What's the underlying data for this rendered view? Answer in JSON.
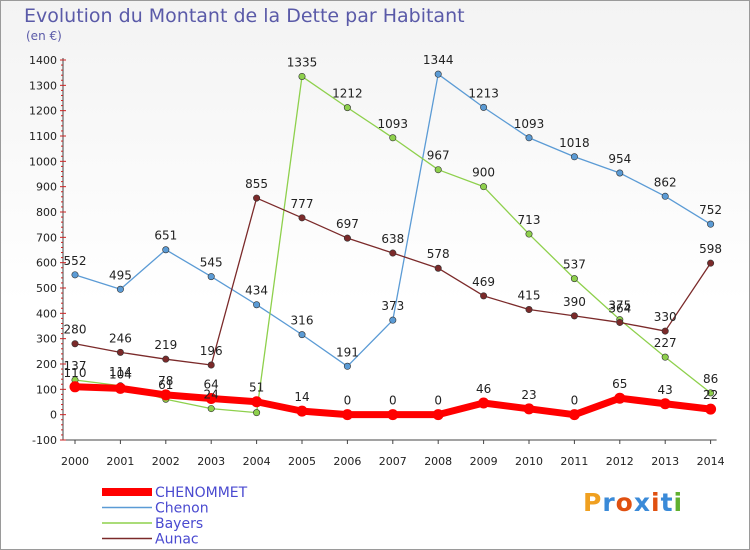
{
  "title": "Evolution du Montant de la Dette par Habitant",
  "subtitle": "(en €)",
  "logo": {
    "text": "Proxiti",
    "colors": [
      "#f0a020",
      "#3a8ad8",
      "#e05010",
      "#3a8ad8",
      "#e05010",
      "#3a8ad8",
      "#60b030"
    ]
  },
  "chart_data": {
    "type": "line",
    "categories": [
      "2000",
      "2001",
      "2002",
      "2003",
      "2004",
      "2005",
      "2006",
      "2007",
      "2008",
      "2009",
      "2010",
      "2011",
      "2012",
      "2013",
      "2014"
    ],
    "ylim": [
      -100,
      1400
    ],
    "yticks": [
      -100,
      0,
      100,
      200,
      300,
      400,
      500,
      600,
      700,
      800,
      900,
      1000,
      1100,
      1200,
      1300,
      1400
    ],
    "grid": false,
    "legend_position": "bottom-left",
    "series": [
      {
        "name": "CHENOMMET",
        "color": "#ff0000",
        "values": [
          110,
          104,
          78,
          64,
          51,
          14,
          0,
          0,
          0,
          46,
          23,
          0,
          65,
          43,
          22
        ],
        "labels": [
          "110",
          "104",
          "78",
          "64",
          "51",
          "14",
          "0",
          "0",
          "0",
          "46",
          "23",
          "0",
          "65",
          "43",
          "22"
        ]
      },
      {
        "name": "Chenon",
        "color": "#5b9bd5",
        "values": [
          552,
          495,
          651,
          545,
          434,
          316,
          191,
          373,
          1344,
          1213,
          1093,
          1018,
          954,
          862,
          752
        ],
        "labels": [
          "552",
          "495",
          "651",
          "545",
          "434",
          "316",
          "191",
          "373",
          "1344",
          "1213",
          "1093",
          "1018",
          "954",
          "862",
          "752"
        ]
      },
      {
        "name": "Bayers",
        "color": "#8ed04c",
        "values": [
          137,
          114,
          61,
          24,
          8,
          1335,
          1212,
          1093,
          967,
          900,
          713,
          537,
          375,
          227,
          86
        ],
        "labels": [
          "137",
          "114",
          "61",
          "24",
          "",
          "1335",
          "1212",
          "1093",
          "967",
          "900",
          "713",
          "537",
          "375",
          "227",
          "86"
        ]
      },
      {
        "name": "Aunac",
        "color": "#7b2a2a",
        "values": [
          280,
          246,
          219,
          196,
          855,
          777,
          697,
          638,
          578,
          469,
          415,
          390,
          364,
          330,
          598
        ],
        "labels": [
          "280",
          "246",
          "219",
          "196",
          "855",
          "777",
          "697",
          "638",
          "578",
          "469",
          "415",
          "390",
          "364",
          "330",
          "598"
        ]
      }
    ]
  }
}
